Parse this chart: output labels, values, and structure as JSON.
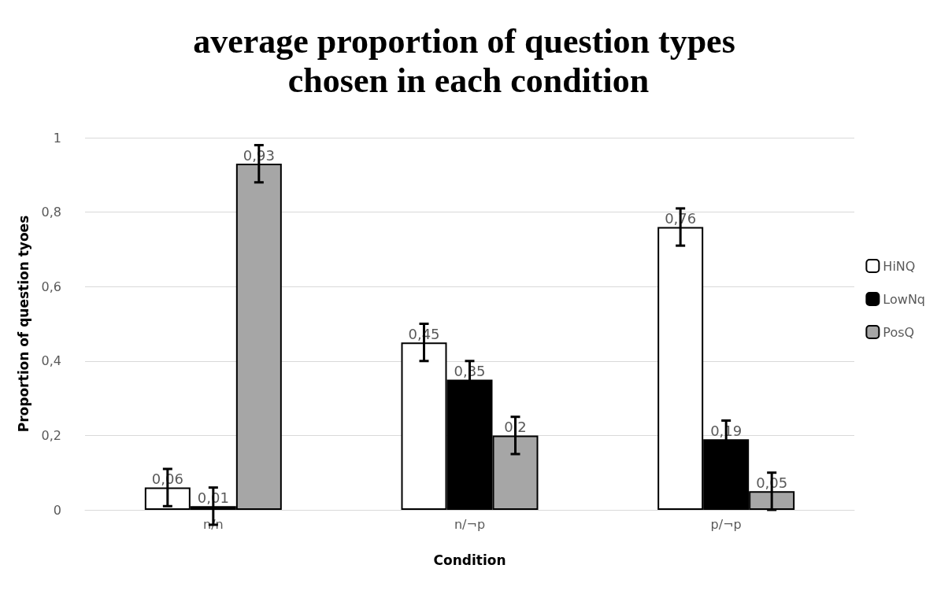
{
  "chart_data": {
    "type": "bar",
    "title": "average proportion of question types chosen in each condition",
    "xlabel": "Condition",
    "ylabel": "Proportion of question tyoes",
    "categories": [
      "n/n",
      "n/¬p",
      "p/¬p"
    ],
    "series": [
      {
        "name": "HiNQ",
        "color": "#ffffff",
        "values": [
          0.06,
          0.45,
          0.76
        ],
        "errors": [
          0.05,
          0.05,
          0.05
        ],
        "value_labels": [
          "0,06",
          "0,45",
          "0,76"
        ]
      },
      {
        "name": "LowNq",
        "color": "#000000",
        "values": [
          0.01,
          0.35,
          0.19
        ],
        "errors": [
          0.05,
          0.05,
          0.05
        ],
        "value_labels": [
          "0,01",
          "0,35",
          "0,19"
        ]
      },
      {
        "name": "PosQ",
        "color": "#a6a6a6",
        "values": [
          0.93,
          0.2,
          0.05
        ],
        "errors": [
          0.05,
          0.05,
          0.05
        ],
        "value_labels": [
          "0,93",
          "0,2",
          "0,05"
        ]
      }
    ],
    "ylim": [
      0,
      1
    ],
    "yticks": [
      0,
      {
        "value": 0.2,
        "label": "0,2"
      },
      {
        "value": 0.4,
        "label": "0,4"
      },
      {
        "value": 0.6,
        "label": "0,6"
      },
      {
        "value": 0.8,
        "label": "0,8"
      },
      1
    ],
    "grid": "y",
    "legend": "right"
  }
}
